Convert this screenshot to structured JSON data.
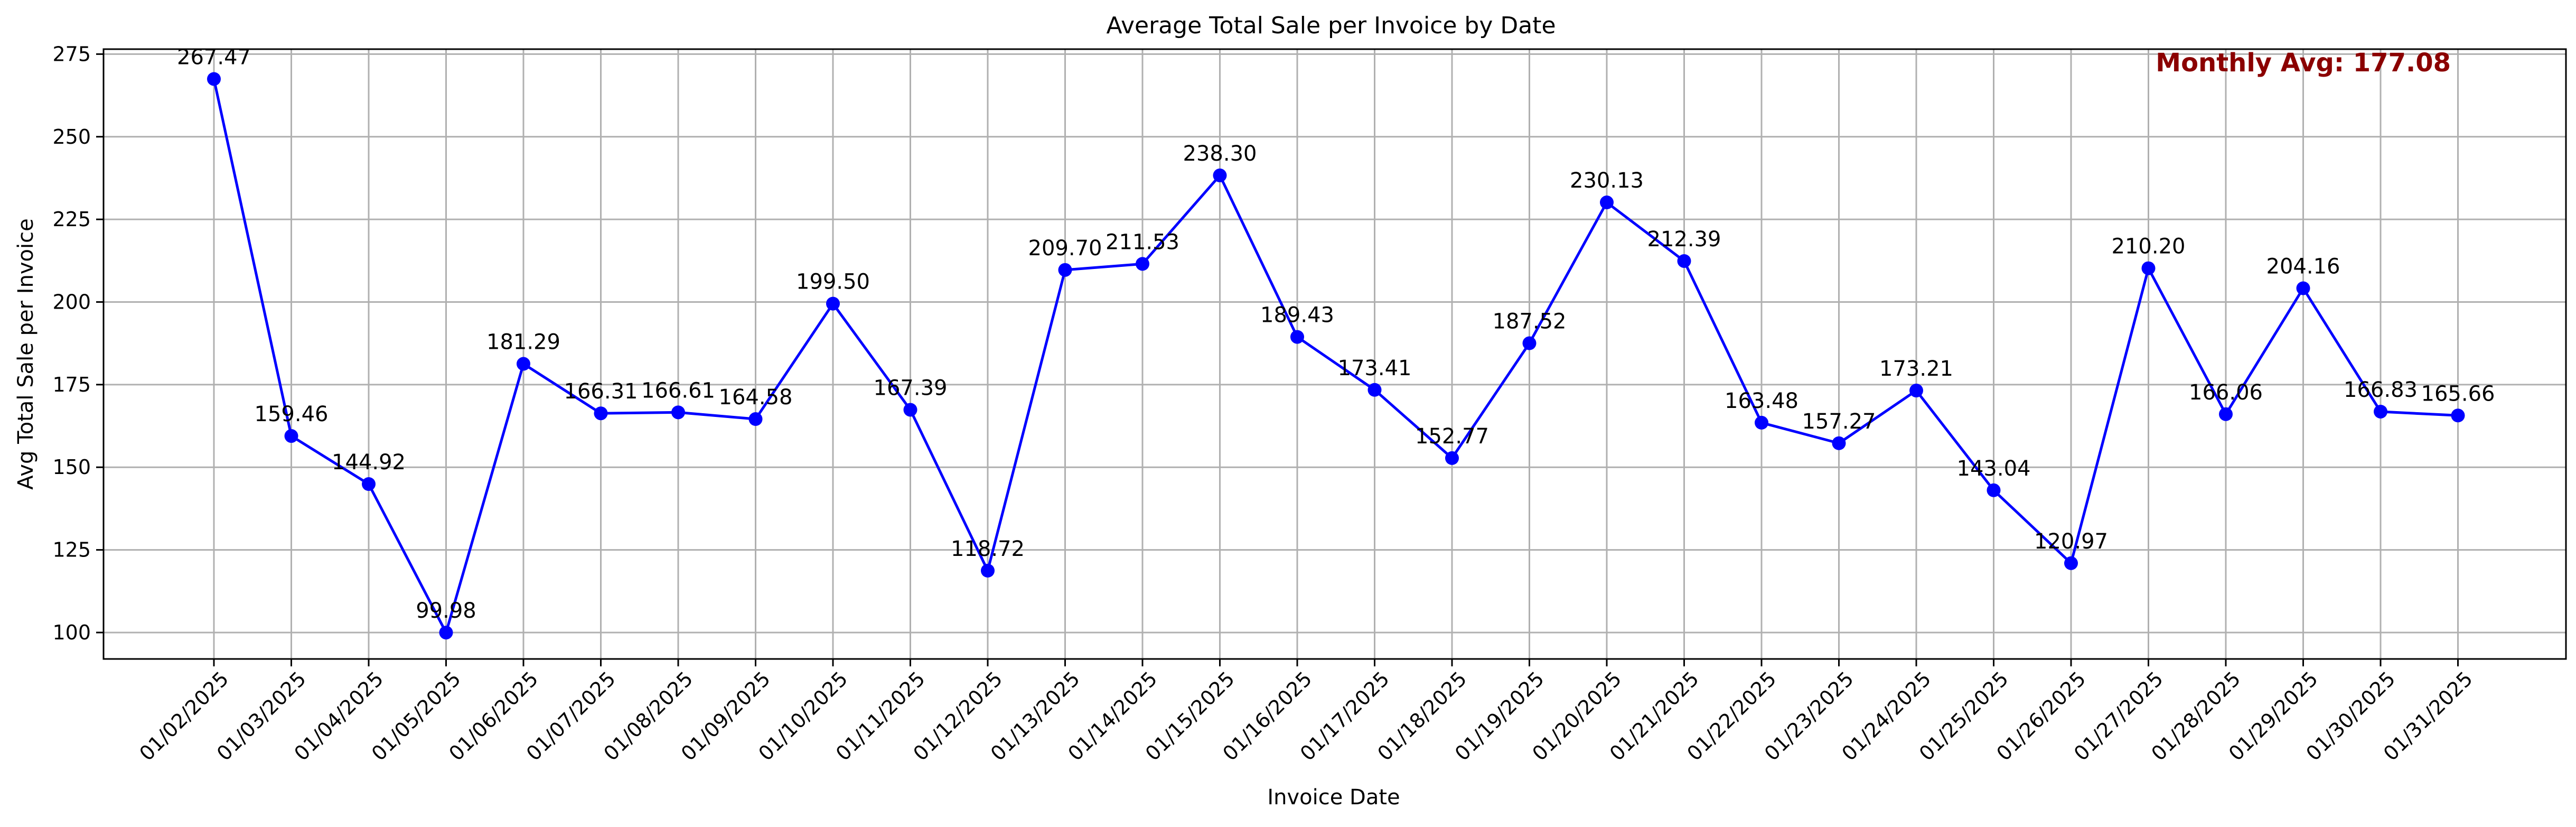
{
  "chart_data": {
    "type": "line",
    "title": "Average Total Sale per Invoice by Date",
    "xlabel": "Invoice Date",
    "ylabel": "Avg Total Sale per Invoice",
    "categories": [
      "01/02/2025",
      "01/03/2025",
      "01/04/2025",
      "01/05/2025",
      "01/06/2025",
      "01/07/2025",
      "01/08/2025",
      "01/09/2025",
      "01/10/2025",
      "01/11/2025",
      "01/12/2025",
      "01/13/2025",
      "01/14/2025",
      "01/15/2025",
      "01/16/2025",
      "01/17/2025",
      "01/18/2025",
      "01/19/2025",
      "01/20/2025",
      "01/21/2025",
      "01/22/2025",
      "01/23/2025",
      "01/24/2025",
      "01/25/2025",
      "01/26/2025",
      "01/27/2025",
      "01/28/2025",
      "01/29/2025",
      "01/30/2025",
      "01/31/2025"
    ],
    "values": [
      267.47,
      159.46,
      144.92,
      99.98,
      181.29,
      166.31,
      166.61,
      164.58,
      199.5,
      167.39,
      118.72,
      209.7,
      211.53,
      238.3,
      189.43,
      173.41,
      152.77,
      187.52,
      230.13,
      212.39,
      163.48,
      157.27,
      173.21,
      143.04,
      120.97,
      210.2,
      166.06,
      204.16,
      166.83,
      165.66
    ],
    "value_labels": [
      "267.47",
      "159.46",
      "144.92",
      "99.98",
      "181.29",
      "166.31",
      "166.61",
      "164.58",
      "199.50",
      "167.39",
      "118.72",
      "209.70",
      "211.53",
      "238.30",
      "189.43",
      "173.41",
      "152.77",
      "187.52",
      "230.13",
      "212.39",
      "163.48",
      "157.27",
      "173.21",
      "143.04",
      "120.97",
      "210.20",
      "166.06",
      "204.16",
      "166.83",
      "165.66"
    ],
    "yticks": [
      100,
      125,
      150,
      175,
      200,
      225,
      250,
      275
    ],
    "ylim": [
      92,
      276.5
    ],
    "grid": true,
    "line_color": "#0000ff",
    "marker_color": "#0000ff",
    "annotation": {
      "text": "Monthly Avg: 177.08",
      "color": "#8b0000",
      "placement": "top-right"
    }
  }
}
